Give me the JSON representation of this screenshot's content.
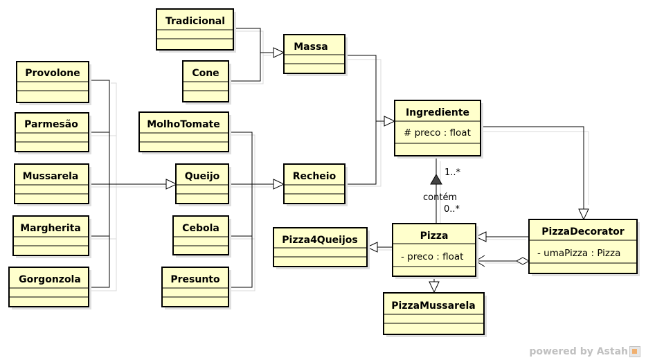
{
  "classes": {
    "tradicional": {
      "name": "Tradicional"
    },
    "cone": {
      "name": "Cone"
    },
    "massa": {
      "name": "Massa"
    },
    "provolone": {
      "name": "Provolone"
    },
    "parmesao": {
      "name": "Parmesão"
    },
    "mussarela": {
      "name": "Mussarela"
    },
    "margherita": {
      "name": "Margherita"
    },
    "gorgonzola": {
      "name": "Gorgonzola"
    },
    "molhotomate": {
      "name": "MolhoTomate"
    },
    "queijo": {
      "name": "Queijo"
    },
    "cebola": {
      "name": "Cebola"
    },
    "presunto": {
      "name": "Presunto"
    },
    "recheio": {
      "name": "Recheio"
    },
    "ingrediente": {
      "name": "Ingrediente",
      "attribute": "# preco : float"
    },
    "pizza": {
      "name": "Pizza",
      "attribute": "- preco : float"
    },
    "pizza4queijos": {
      "name": "Pizza4Queijos"
    },
    "pizzamussarela": {
      "name": "PizzaMussarela"
    },
    "pizzadecorator": {
      "name": "PizzaDecorator",
      "attribute": "- umaPizza : Pizza"
    }
  },
  "association": {
    "name": "contém",
    "ingrediente_multiplicity": "1..*",
    "pizza_multiplicity": "0..*"
  },
  "footer": {
    "brand": "powered by Astah"
  }
}
